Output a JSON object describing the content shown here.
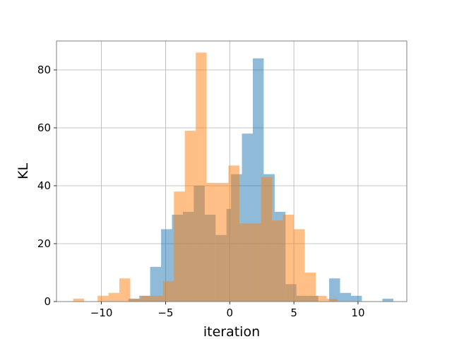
{
  "chart_data": {
    "type": "bar",
    "subtype": "overlapping-histogram",
    "xlabel": "iteration",
    "ylabel": "KL",
    "xlim": [
      -13.5,
      13.8
    ],
    "ylim": [
      0,
      90
    ],
    "xticks": [
      -10,
      -5,
      0,
      5,
      10
    ],
    "xtick_labels": [
      "−10",
      "−5",
      "0",
      "5",
      "10"
    ],
    "yticks": [
      0,
      20,
      40,
      60,
      80
    ],
    "ytick_labels": [
      "0",
      "20",
      "40",
      "60",
      "80"
    ],
    "grid": true,
    "legend": "none",
    "series": [
      {
        "color": "#1f77b4",
        "alpha": 0.5,
        "bins": [
          {
            "x0": -7.9,
            "x1": -7.05,
            "value": 1
          },
          {
            "x0": -7.05,
            "x1": -6.2,
            "value": 2
          },
          {
            "x0": -6.2,
            "x1": -5.35,
            "value": 12
          },
          {
            "x0": -5.35,
            "x1": -4.5,
            "value": 25
          },
          {
            "x0": -4.5,
            "x1": -3.65,
            "value": 30
          },
          {
            "x0": -3.65,
            "x1": -2.8,
            "value": 31
          },
          {
            "x0": -2.8,
            "x1": -1.95,
            "value": 40
          },
          {
            "x0": -1.95,
            "x1": -1.1,
            "value": 30
          },
          {
            "x0": -1.1,
            "x1": -0.25,
            "value": 23
          },
          {
            "x0": -0.25,
            "x1": 0.1,
            "value": 32
          },
          {
            "x0": 0.1,
            "x1": 0.95,
            "value": 44
          },
          {
            "x0": 0.95,
            "x1": 1.8,
            "value": 58
          },
          {
            "x0": 1.8,
            "x1": 2.65,
            "value": 84
          },
          {
            "x0": 2.65,
            "x1": 3.5,
            "value": 44
          },
          {
            "x0": 3.5,
            "x1": 4.35,
            "value": 31
          },
          {
            "x0": 4.35,
            "x1": 5.2,
            "value": 6
          },
          {
            "x0": 5.2,
            "x1": 6.05,
            "value": 2
          },
          {
            "x0": 6.05,
            "x1": 6.9,
            "value": 2
          },
          {
            "x0": 6.9,
            "x1": 7.75,
            "value": 0
          },
          {
            "x0": 7.75,
            "x1": 8.6,
            "value": 8
          },
          {
            "x0": 8.6,
            "x1": 9.45,
            "value": 3
          },
          {
            "x0": 9.45,
            "x1": 10.3,
            "value": 2
          },
          {
            "x0": 11.9,
            "x1": 12.75,
            "value": 1
          }
        ]
      },
      {
        "color": "#ff7f0e",
        "alpha": 0.5,
        "bins": [
          {
            "x0": -12.2,
            "x1": -11.35,
            "value": 1
          },
          {
            "x0": -10.3,
            "x1": -9.45,
            "value": 2
          },
          {
            "x0": -9.45,
            "x1": -8.6,
            "value": 3
          },
          {
            "x0": -8.6,
            "x1": -7.75,
            "value": 8
          },
          {
            "x0": -7.75,
            "x1": -6.9,
            "value": 1
          },
          {
            "x0": -6.9,
            "x1": -6.05,
            "value": 2
          },
          {
            "x0": -6.05,
            "x1": -5.2,
            "value": 2
          },
          {
            "x0": -5.2,
            "x1": -4.35,
            "value": 7
          },
          {
            "x0": -4.35,
            "x1": -3.5,
            "value": 38
          },
          {
            "x0": -3.5,
            "x1": -2.65,
            "value": 59
          },
          {
            "x0": -2.65,
            "x1": -1.8,
            "value": 86
          },
          {
            "x0": -1.8,
            "x1": -0.95,
            "value": 41
          },
          {
            "x0": -0.95,
            "x1": -0.1,
            "value": 41
          },
          {
            "x0": -0.1,
            "x1": 0.75,
            "value": 47
          },
          {
            "x0": 0.75,
            "x1": 1.6,
            "value": 27
          },
          {
            "x0": 1.6,
            "x1": 2.45,
            "value": 27
          },
          {
            "x0": 2.45,
            "x1": 3.3,
            "value": 43
          },
          {
            "x0": 3.3,
            "x1": 4.15,
            "value": 28
          },
          {
            "x0": 4.15,
            "x1": 5.0,
            "value": 30
          },
          {
            "x0": 5.0,
            "x1": 5.85,
            "value": 25
          },
          {
            "x0": 5.85,
            "x1": 6.7,
            "value": 10
          },
          {
            "x0": 6.7,
            "x1": 7.55,
            "value": 2
          },
          {
            "x0": 7.55,
            "x1": 8.4,
            "value": 1
          }
        ]
      }
    ]
  }
}
